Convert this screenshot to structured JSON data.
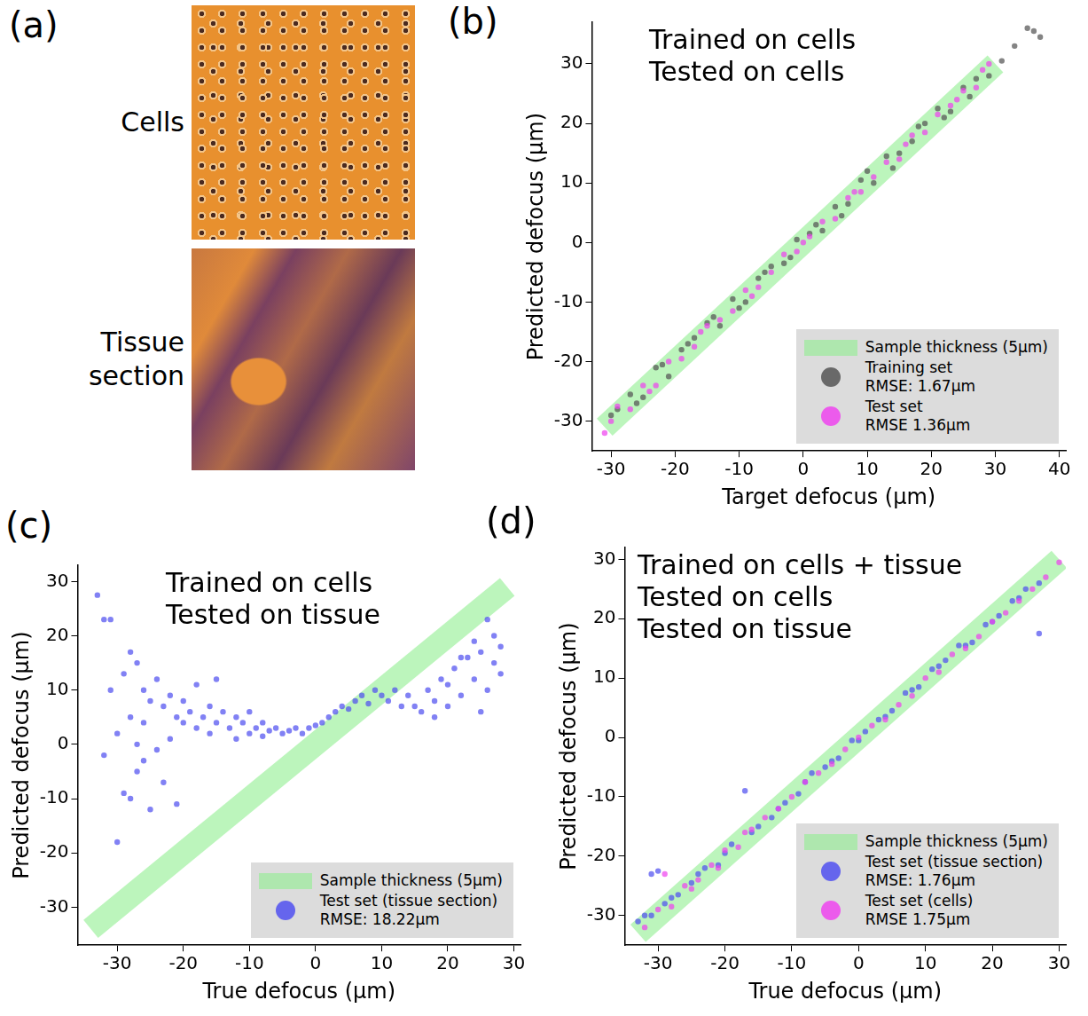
{
  "panel_a": {
    "panel": "(a)",
    "images": [
      "Cells",
      "Tissue section"
    ]
  },
  "chart_data": [
    {
      "type": "scatter",
      "panel": "(b)",
      "annotation": [
        "Trained on cells",
        "Tested on cells"
      ],
      "x_label": "Target defocus (µm)",
      "y_label": "Predicted defocus (µm)",
      "xlim": [
        -33,
        41
      ],
      "ylim": [
        -35,
        37
      ],
      "xticks": [
        -30,
        -20,
        -10,
        0,
        10,
        20,
        30,
        40
      ],
      "yticks": [
        -30,
        -20,
        -10,
        0,
        10,
        20,
        30
      ],
      "grid": false,
      "legend": "lower right",
      "series": [
        {
          "name": "Sample thickness (5µm)",
          "type": "line",
          "color": "#90ee90",
          "x": [
            -31,
            30
          ],
          "values": [
            -31,
            30
          ]
        },
        {
          "name": "Training set",
          "legend_detail": "RMSE: 1.67µm",
          "type": "scatter",
          "marker": "circle",
          "color": "#555555",
          "x": [
            -29,
            -27,
            -25,
            -23,
            -21,
            -19,
            -17,
            -15,
            -13,
            -11,
            -9,
            -7,
            -5,
            -3,
            -1,
            1,
            3,
            5,
            7,
            9,
            11,
            13,
            15,
            17,
            19,
            21,
            23,
            25,
            27,
            29,
            31,
            33,
            35,
            36,
            37,
            -30,
            -26,
            -22,
            -18,
            -14,
            -10,
            -6,
            -2,
            2,
            6,
            10,
            14,
            18,
            22,
            26
          ],
          "values": [
            -28,
            -25.5,
            -26,
            -21,
            -22.5,
            -18,
            -16,
            -13.5,
            -14,
            -9.5,
            -10,
            -6,
            -4,
            -3.5,
            0.5,
            1.5,
            2,
            6,
            6.5,
            10.5,
            10,
            14.5,
            15,
            17,
            20,
            22.5,
            22,
            26,
            27.5,
            28,
            30.5,
            33,
            36,
            35.5,
            34.5,
            -29,
            -27,
            -20.5,
            -17,
            -12.5,
            -11,
            -5,
            -2.5,
            3,
            4.5,
            12,
            12.5,
            19.5,
            21,
            24.5
          ]
        },
        {
          "name": "Test set",
          "legend_detail": "RMSE 1.36µm",
          "type": "scatter",
          "marker": "circle",
          "color": "#ee44ee",
          "x": [
            -31,
            -29,
            -27,
            -25,
            -23,
            -21,
            -19,
            -17,
            -15,
            -13,
            -11,
            -9,
            -7,
            -5,
            -3,
            -1,
            1,
            3,
            5,
            7,
            9,
            11,
            13,
            15,
            17,
            19,
            21,
            23,
            25,
            27,
            29,
            -30,
            -24,
            -16,
            -8,
            0,
            8,
            16,
            24,
            28
          ],
          "values": [
            -32,
            -27.5,
            -28,
            -24,
            -24,
            -20,
            -19.5,
            -17.5,
            -14,
            -13,
            -11.5,
            -8,
            -7.5,
            -5,
            -2,
            -1.5,
            1,
            3.5,
            4,
            7.5,
            8.5,
            11,
            13.5,
            14,
            18,
            18.5,
            21.5,
            23,
            25.5,
            26,
            30,
            -30,
            -25,
            -15,
            -9,
            0,
            8.5,
            16.5,
            24,
            29
          ]
        }
      ]
    },
    {
      "type": "scatter",
      "panel": "(c)",
      "annotation": [
        "Trained on cells",
        "Tested on tissue"
      ],
      "x_label": "True defocus (µm)",
      "y_label": "Predicted defocus (µm)",
      "xlim": [
        -36,
        31
      ],
      "ylim": [
        -37,
        33
      ],
      "xticks": [
        -30,
        -20,
        -10,
        0,
        10,
        20,
        30
      ],
      "yticks": [
        -30,
        -20,
        -10,
        0,
        10,
        20,
        30
      ],
      "grid": false,
      "legend": "lower right",
      "series": [
        {
          "name": "Sample thickness (5µm)",
          "type": "line",
          "color": "#90ee90",
          "x": [
            -34,
            29
          ],
          "values": [
            -34,
            29
          ]
        },
        {
          "name": "Test set (tissue section)",
          "legend_detail": "RMSE: 18.22µm",
          "type": "scatter",
          "marker": "circle",
          "color": "#5050f0",
          "x": [
            -33,
            -32,
            -32,
            -31,
            -31,
            -30,
            -30,
            -29,
            -29,
            -28,
            -28,
            -28,
            -27,
            -27,
            -27,
            -26,
            -26,
            -26,
            -25,
            -25,
            -24,
            -24,
            -23,
            -23,
            -22,
            -22,
            -21,
            -21,
            -20,
            -20,
            -19,
            -18,
            -18,
            -17,
            -16,
            -16,
            -15,
            -15,
            -14,
            -13,
            -12,
            -12,
            -11,
            -10,
            -10,
            -9,
            -8,
            -8,
            -7,
            -6,
            -5,
            -4,
            -3,
            -2,
            -1,
            0,
            1,
            2,
            3,
            4,
            5,
            6,
            7,
            8,
            9,
            10,
            11,
            12,
            13,
            14,
            15,
            16,
            17,
            18,
            19,
            20,
            21,
            22,
            23,
            24,
            25,
            26,
            27,
            27,
            26,
            28,
            28,
            25,
            24,
            22,
            20,
            18
          ],
          "values": [
            27.5,
            23,
            -2,
            23,
            10,
            2,
            -18,
            13,
            -9,
            17,
            -10,
            5,
            15,
            -5,
            0,
            10,
            -3,
            4,
            8,
            -12,
            12,
            -1,
            7,
            -7,
            9,
            1,
            -11,
            5,
            4,
            8,
            6,
            3,
            11,
            5,
            7,
            2,
            12,
            4,
            6,
            3,
            5,
            1,
            4,
            6,
            2,
            3,
            4,
            1.5,
            2.5,
            3,
            2,
            2.5,
            3,
            2,
            3,
            3.5,
            4,
            5,
            6,
            7,
            6.5,
            8,
            9,
            7.5,
            10,
            9,
            8,
            10,
            7,
            9,
            7,
            6,
            10,
            8,
            12,
            7,
            14,
            9,
            16,
            12,
            17,
            10,
            20,
            15,
            23,
            13,
            18,
            6,
            19,
            16,
            11,
            5
          ]
        }
      ]
    },
    {
      "type": "scatter",
      "panel": "(d)",
      "annotation": [
        "Trained on cells + tissue",
        "Tested on cells",
        "Tested on tissue"
      ],
      "x_label": "True defocus (µm)",
      "y_label": "Predicted defocus (µm)",
      "xlim": [
        -35,
        31
      ],
      "ylim": [
        -35,
        32
      ],
      "xticks": [
        -30,
        -20,
        -10,
        0,
        10,
        20,
        30
      ],
      "yticks": [
        -30,
        -20,
        -10,
        0,
        10,
        20,
        30
      ],
      "grid": false,
      "legend": "lower right",
      "series": [
        {
          "name": "Sample thickness (5µm)",
          "type": "line",
          "color": "#90ee90",
          "x": [
            -33,
            30
          ],
          "values": [
            -33,
            30
          ]
        },
        {
          "name": "Test set (tissue section)",
          "legend_detail": "RMSE: 1.76µm",
          "type": "scatter",
          "marker": "circle",
          "color": "#5050f0",
          "x": [
            -33,
            -31,
            -29,
            -27,
            -25,
            -23,
            -21,
            -19,
            -17,
            -15,
            -13,
            -11,
            -9,
            -7,
            -5,
            -3,
            -1,
            1,
            3,
            5,
            7,
            9,
            11,
            13,
            15,
            17,
            19,
            21,
            23,
            25,
            27,
            -32,
            -28,
            -24,
            -20,
            -16,
            -12,
            -8,
            -4,
            0,
            4,
            8,
            12,
            16,
            20,
            24,
            27,
            -31,
            -30
          ],
          "values": [
            -31,
            -30,
            -28,
            -26.5,
            -24.5,
            -22,
            -21.5,
            -18,
            -9,
            -15,
            -13.5,
            -11,
            -9.5,
            -6,
            -5,
            -3.5,
            -0.5,
            1,
            3,
            4.5,
            7.5,
            8.5,
            11.5,
            13,
            15.5,
            16,
            19,
            20.5,
            23,
            25,
            26,
            -30,
            -27,
            -23,
            -19.5,
            -16,
            -12,
            -7.5,
            -4,
            -0.5,
            3.5,
            8,
            12,
            15.5,
            19.5,
            23.5,
            17.5,
            -23,
            -22.5
          ]
        },
        {
          "name": "Test set (cells)",
          "legend_detail": "RMSE 1.75µm",
          "type": "scatter",
          "marker": "circle",
          "color": "#ee44ee",
          "x": [
            -32,
            -30,
            -28,
            -26,
            -24,
            -22,
            -20,
            -18,
            -16,
            -14,
            -12,
            -10,
            -8,
            -6,
            -4,
            -2,
            0,
            2,
            4,
            6,
            8,
            10,
            12,
            14,
            16,
            18,
            20,
            22,
            24,
            26,
            28,
            30,
            -29,
            -25,
            -21,
            -17
          ],
          "values": [
            -32,
            -29,
            -28.5,
            -25,
            -24,
            -21.5,
            -19,
            -18.5,
            -15.5,
            -13.5,
            -12,
            -10,
            -7.5,
            -6,
            -4.5,
            -2,
            0,
            2,
            3,
            5.5,
            7,
            10,
            11,
            14,
            15,
            17,
            19.5,
            21,
            23,
            25,
            27,
            29.5,
            -23,
            -25.5,
            -22,
            -16
          ]
        }
      ]
    }
  ]
}
